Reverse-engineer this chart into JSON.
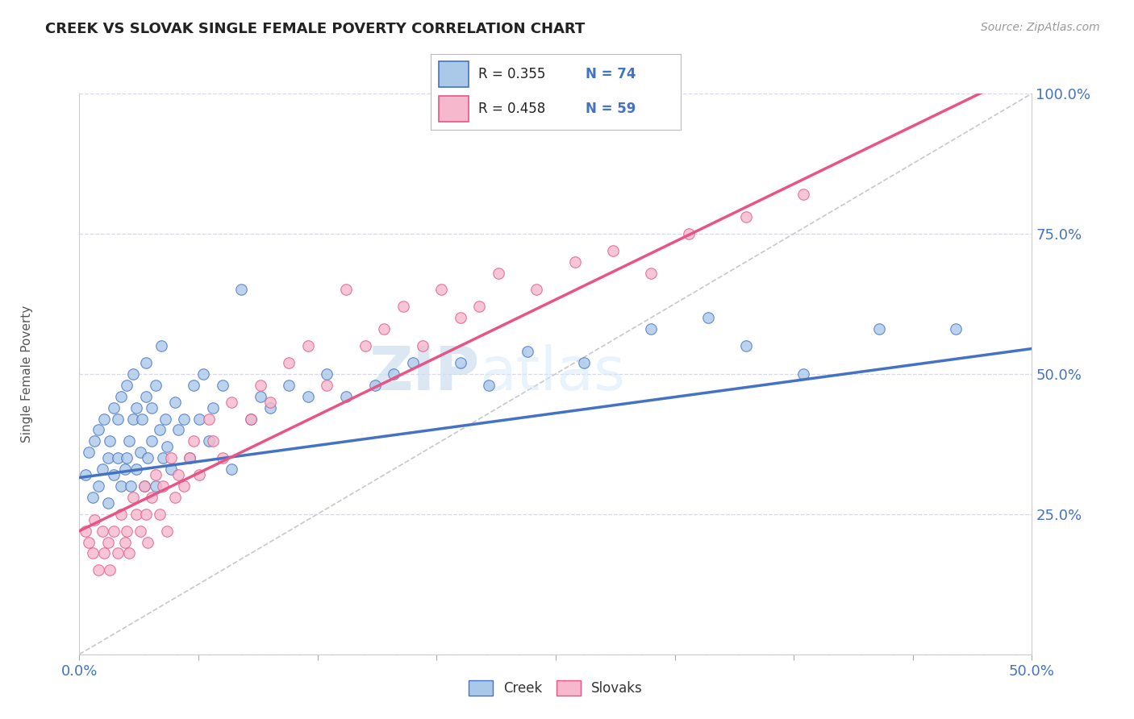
{
  "title": "CREEK VS SLOVAK SINGLE FEMALE POVERTY CORRELATION CHART",
  "source": "Source: ZipAtlas.com",
  "ylabel": "Single Female Poverty",
  "xlabel": "",
  "xlim": [
    0.0,
    0.5
  ],
  "ylim": [
    0.0,
    1.0
  ],
  "x_ticks": [
    0.0,
    0.0625,
    0.125,
    0.1875,
    0.25,
    0.3125,
    0.375,
    0.4375,
    0.5
  ],
  "y_ticks": [
    0.0,
    0.25,
    0.5,
    0.75,
    1.0
  ],
  "y_tick_labels": [
    "",
    "25.0%",
    "50.0%",
    "75.0%",
    "100.0%"
  ],
  "creek_color": "#aac8e8",
  "slovak_color": "#f5b8cc",
  "creek_line_color": "#4472c4",
  "slovak_line_color": "#e85585",
  "diagonal_color": "#c8c8c8",
  "background_color": "#ffffff",
  "grid_color": "#d8d8e8",
  "creek_R": 0.355,
  "creek_N": 74,
  "slovak_R": 0.458,
  "slovak_N": 59,
  "legend_text_color": "#4472c4",
  "watermark_zip": "ZIP",
  "watermark_atlas": "atlas",
  "creek_intercept": 0.315,
  "creek_slope": 0.46,
  "slovak_intercept": 0.22,
  "slovak_slope": 1.65,
  "creek_points_x": [
    0.003,
    0.005,
    0.007,
    0.008,
    0.01,
    0.01,
    0.012,
    0.013,
    0.015,
    0.015,
    0.016,
    0.018,
    0.018,
    0.02,
    0.02,
    0.022,
    0.022,
    0.024,
    0.025,
    0.025,
    0.026,
    0.027,
    0.028,
    0.028,
    0.03,
    0.03,
    0.032,
    0.033,
    0.034,
    0.035,
    0.035,
    0.036,
    0.038,
    0.038,
    0.04,
    0.04,
    0.042,
    0.043,
    0.044,
    0.045,
    0.046,
    0.048,
    0.05,
    0.052,
    0.055,
    0.058,
    0.06,
    0.063,
    0.065,
    0.068,
    0.07,
    0.075,
    0.08,
    0.085,
    0.09,
    0.095,
    0.1,
    0.11,
    0.12,
    0.13,
    0.14,
    0.155,
    0.165,
    0.175,
    0.2,
    0.215,
    0.235,
    0.265,
    0.3,
    0.33,
    0.35,
    0.38,
    0.42,
    0.46
  ],
  "creek_points_y": [
    0.32,
    0.36,
    0.28,
    0.38,
    0.3,
    0.4,
    0.33,
    0.42,
    0.27,
    0.35,
    0.38,
    0.32,
    0.44,
    0.35,
    0.42,
    0.3,
    0.46,
    0.33,
    0.35,
    0.48,
    0.38,
    0.3,
    0.42,
    0.5,
    0.33,
    0.44,
    0.36,
    0.42,
    0.3,
    0.46,
    0.52,
    0.35,
    0.38,
    0.44,
    0.3,
    0.48,
    0.4,
    0.55,
    0.35,
    0.42,
    0.37,
    0.33,
    0.45,
    0.4,
    0.42,
    0.35,
    0.48,
    0.42,
    0.5,
    0.38,
    0.44,
    0.48,
    0.33,
    0.65,
    0.42,
    0.46,
    0.44,
    0.48,
    0.46,
    0.5,
    0.46,
    0.48,
    0.5,
    0.52,
    0.52,
    0.48,
    0.54,
    0.52,
    0.58,
    0.6,
    0.55,
    0.5,
    0.58,
    0.58
  ],
  "slovak_points_x": [
    0.003,
    0.005,
    0.007,
    0.008,
    0.01,
    0.012,
    0.013,
    0.015,
    0.016,
    0.018,
    0.02,
    0.022,
    0.024,
    0.025,
    0.026,
    0.028,
    0.03,
    0.032,
    0.034,
    0.035,
    0.036,
    0.038,
    0.04,
    0.042,
    0.044,
    0.046,
    0.048,
    0.05,
    0.052,
    0.055,
    0.058,
    0.06,
    0.063,
    0.068,
    0.07,
    0.075,
    0.08,
    0.09,
    0.095,
    0.1,
    0.11,
    0.12,
    0.13,
    0.14,
    0.15,
    0.16,
    0.17,
    0.18,
    0.19,
    0.2,
    0.21,
    0.22,
    0.24,
    0.26,
    0.28,
    0.3,
    0.32,
    0.35,
    0.38
  ],
  "slovak_points_y": [
    0.22,
    0.2,
    0.18,
    0.24,
    0.15,
    0.22,
    0.18,
    0.2,
    0.15,
    0.22,
    0.18,
    0.25,
    0.2,
    0.22,
    0.18,
    0.28,
    0.25,
    0.22,
    0.3,
    0.25,
    0.2,
    0.28,
    0.32,
    0.25,
    0.3,
    0.22,
    0.35,
    0.28,
    0.32,
    0.3,
    0.35,
    0.38,
    0.32,
    0.42,
    0.38,
    0.35,
    0.45,
    0.42,
    0.48,
    0.45,
    0.52,
    0.55,
    0.48,
    0.65,
    0.55,
    0.58,
    0.62,
    0.55,
    0.65,
    0.6,
    0.62,
    0.68,
    0.65,
    0.7,
    0.72,
    0.68,
    0.75,
    0.78,
    0.82
  ]
}
